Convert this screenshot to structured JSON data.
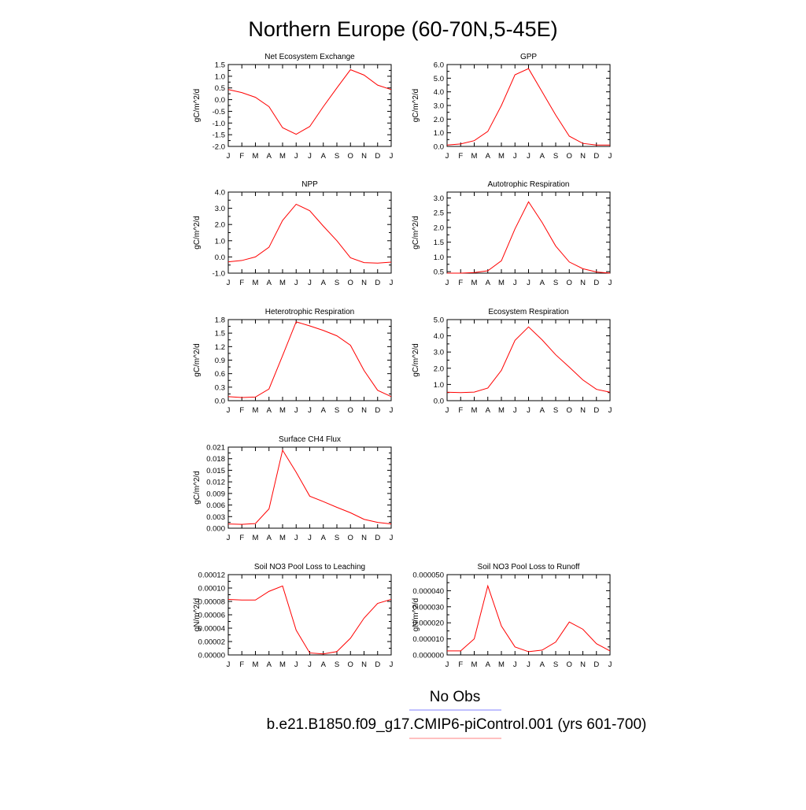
{
  "title": "Northern Europe (60-70N,5-45E)",
  "legend": {
    "entries": [
      {
        "label": "No Obs",
        "color": "#8080ff"
      },
      {
        "label": "b.e21.B1850.f09_g17.CMIP6-piControl.001 (yrs 601-700)",
        "color": "#ff8080"
      }
    ]
  },
  "chart_data": [
    {
      "type": "line",
      "title": "Net Ecosystem Exchange",
      "ylabel": "gC/m^2/d",
      "ylim": [
        -2.0,
        1.5
      ],
      "yticks": [
        -2.0,
        -1.5,
        -1.0,
        -0.5,
        0.0,
        0.5,
        1.0,
        1.5
      ],
      "ytick_labels": [
        "-2.0",
        "-1.5",
        "-1.0",
        "-0.5",
        "0.0",
        "0.5",
        "1.0",
        "1.5"
      ],
      "x_labels": [
        "J",
        "F",
        "M",
        "A",
        "M",
        "J",
        "J",
        "A",
        "S",
        "O",
        "N",
        "D",
        "J"
      ],
      "series": [
        {
          "color": "#ff0000",
          "values": [
            0.43,
            0.3,
            0.1,
            -0.3,
            -1.2,
            -1.48,
            -1.15,
            -0.3,
            0.5,
            1.28,
            1.05,
            0.62,
            0.43
          ]
        }
      ]
    },
    {
      "type": "line",
      "title": "GPP",
      "ylabel": "gC/m^2/d",
      "ylim": [
        0.0,
        6.0
      ],
      "yticks": [
        0.0,
        1.0,
        2.0,
        3.0,
        4.0,
        5.0,
        6.0
      ],
      "ytick_labels": [
        "0.0",
        "1.0",
        "2.0",
        "3.0",
        "4.0",
        "5.0",
        "6.0"
      ],
      "x_labels": [
        "J",
        "F",
        "M",
        "A",
        "M",
        "J",
        "J",
        "A",
        "S",
        "O",
        "N",
        "D",
        "J"
      ],
      "series": [
        {
          "color": "#ff0000",
          "values": [
            0.1,
            0.18,
            0.42,
            1.1,
            3.0,
            5.25,
            5.7,
            4.0,
            2.3,
            0.75,
            0.22,
            0.1,
            0.1
          ]
        }
      ]
    },
    {
      "type": "line",
      "title": "NPP",
      "ylabel": "gC/m^2/d",
      "ylim": [
        -1.0,
        4.0
      ],
      "yticks": [
        -1.0,
        0.0,
        1.0,
        2.0,
        3.0,
        4.0
      ],
      "ytick_labels": [
        "-1.0",
        "0.0",
        "1.0",
        "2.0",
        "3.0",
        "4.0"
      ],
      "x_labels": [
        "J",
        "F",
        "M",
        "A",
        "M",
        "J",
        "J",
        "A",
        "S",
        "O",
        "N",
        "D",
        "J"
      ],
      "series": [
        {
          "color": "#ff0000",
          "values": [
            -0.3,
            -0.22,
            0.0,
            0.6,
            2.25,
            3.25,
            2.85,
            1.9,
            1.0,
            -0.05,
            -0.35,
            -0.38,
            -0.32
          ]
        }
      ]
    },
    {
      "type": "line",
      "title": "Autotrophic Respiration",
      "ylabel": "gC/m^2/d",
      "ylim": [
        0.45,
        3.2
      ],
      "yticks": [
        0.5,
        1.0,
        1.5,
        2.0,
        2.5,
        3.0
      ],
      "ytick_labels": [
        "0.5",
        "1.0",
        "1.5",
        "2.0",
        "2.5",
        "3.0"
      ],
      "x_labels": [
        "J",
        "F",
        "M",
        "A",
        "M",
        "J",
        "J",
        "A",
        "S",
        "O",
        "N",
        "D",
        "J"
      ],
      "series": [
        {
          "color": "#ff0000",
          "values": [
            0.45,
            0.45,
            0.47,
            0.53,
            0.87,
            1.95,
            2.87,
            2.17,
            1.37,
            0.83,
            0.6,
            0.49,
            0.45
          ]
        }
      ]
    },
    {
      "type": "line",
      "title": "Heterotrophic Respiration",
      "ylabel": "gC/m^2/d",
      "ylim": [
        0.0,
        1.8
      ],
      "yticks": [
        0.0,
        0.3,
        0.6,
        0.9,
        1.2,
        1.5,
        1.8
      ],
      "ytick_labels": [
        "0.0",
        "0.3",
        "0.6",
        "0.9",
        "1.2",
        "1.5",
        "1.8"
      ],
      "x_labels": [
        "J",
        "F",
        "M",
        "A",
        "M",
        "J",
        "J",
        "A",
        "S",
        "O",
        "N",
        "D",
        "J"
      ],
      "series": [
        {
          "color": "#ff0000",
          "values": [
            0.09,
            0.07,
            0.08,
            0.26,
            1.0,
            1.75,
            1.66,
            1.56,
            1.44,
            1.23,
            0.67,
            0.23,
            0.09
          ]
        }
      ]
    },
    {
      "type": "line",
      "title": "Ecosystem Respiration",
      "ylabel": "gC/m^2/d",
      "ylim": [
        0.0,
        5.0
      ],
      "yticks": [
        0.0,
        1.0,
        2.0,
        3.0,
        4.0,
        5.0
      ],
      "ytick_labels": [
        "0.0",
        "1.0",
        "2.0",
        "3.0",
        "4.0",
        "5.0"
      ],
      "x_labels": [
        "J",
        "F",
        "M",
        "A",
        "M",
        "J",
        "J",
        "A",
        "S",
        "O",
        "N",
        "D",
        "J"
      ],
      "series": [
        {
          "color": "#ff0000",
          "values": [
            0.52,
            0.5,
            0.53,
            0.78,
            1.87,
            3.72,
            4.55,
            3.75,
            2.83,
            2.07,
            1.28,
            0.7,
            0.52
          ]
        }
      ]
    },
    {
      "type": "line",
      "title": "Surface CH4 Flux",
      "ylabel": "gC/m^2/d",
      "ylim": [
        0.0,
        0.021
      ],
      "yticks": [
        0.0,
        0.003,
        0.006,
        0.009,
        0.012,
        0.015,
        0.018,
        0.021
      ],
      "ytick_labels": [
        "0.000",
        "0.003",
        "0.006",
        "0.009",
        "0.012",
        "0.015",
        "0.018",
        "0.021"
      ],
      "x_labels": [
        "J",
        "F",
        "M",
        "A",
        "M",
        "J",
        "J",
        "A",
        "S",
        "O",
        "N",
        "D",
        "J"
      ],
      "series": [
        {
          "color": "#ff0000",
          "values": [
            0.0011,
            0.001,
            0.0012,
            0.005,
            0.0202,
            0.0145,
            0.0083,
            0.0069,
            0.0054,
            0.004,
            0.0023,
            0.0015,
            0.0011
          ]
        }
      ]
    },
    {
      "type": "line",
      "title": "Soil NO3 Pool Loss to Leaching",
      "ylabel": "gN/m^2/d",
      "ylim": [
        0.0,
        0.00012
      ],
      "yticks": [
        0.0,
        2e-05,
        4e-05,
        6e-05,
        8e-05,
        0.0001,
        0.00012
      ],
      "ytick_labels": [
        "0.00000",
        "0.00002",
        "0.00004",
        "0.00006",
        "0.00008",
        "0.00010",
        "0.00012"
      ],
      "x_labels": [
        "J",
        "F",
        "M",
        "A",
        "M",
        "J",
        "J",
        "A",
        "S",
        "O",
        "N",
        "D",
        "J"
      ],
      "series": [
        {
          "color": "#ff0000",
          "values": [
            8.3e-05,
            8.2e-05,
            8.2e-05,
            9.5e-05,
            0.000103,
            3.7e-05,
            3e-06,
            1.5e-06,
            5e-06,
            2.5e-05,
            5.5e-05,
            7.7e-05,
            8.3e-05
          ]
        }
      ]
    },
    {
      "type": "line",
      "title": "Soil NO3 Pool Loss to Runoff",
      "ylabel": "gN/m^2/d",
      "ylim": [
        0.0,
        5e-05
      ],
      "yticks": [
        0.0,
        1e-05,
        2e-05,
        3e-05,
        4e-05,
        5e-05
      ],
      "ytick_labels": [
        "0.000000",
        "0.000010",
        "0.000020",
        "0.000030",
        "0.000040",
        "0.000050"
      ],
      "x_labels": [
        "J",
        "F",
        "M",
        "A",
        "M",
        "J",
        "J",
        "A",
        "S",
        "O",
        "N",
        "D",
        "J"
      ],
      "series": [
        {
          "color": "#ff0000",
          "values": [
            2.5e-06,
            2.5e-06,
            1e-05,
            4.3e-05,
            1.8e-05,
            5e-06,
            2e-06,
            3e-06,
            8e-06,
            2.05e-05,
            1.6e-05,
            7e-06,
            2.5e-06
          ]
        }
      ]
    }
  ]
}
